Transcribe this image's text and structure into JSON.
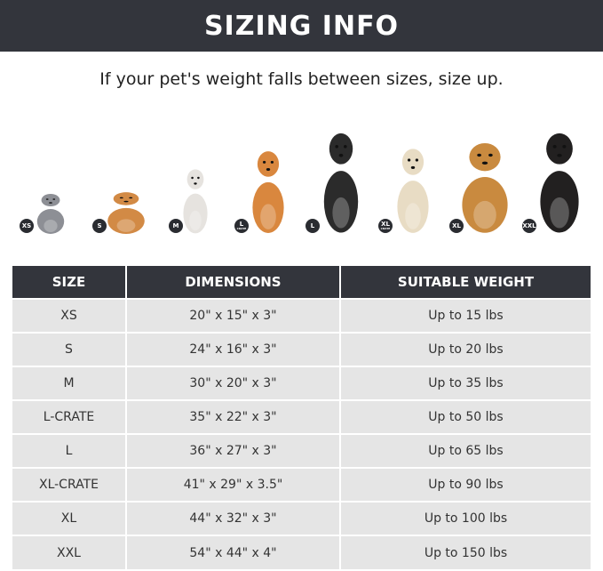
{
  "banner": {
    "title": "SIZING INFO"
  },
  "subtitle": "If your pet's weight falls between sizes, size up.",
  "pets": [
    {
      "badge": "XS",
      "animal": "cat",
      "color": "#8d8f95"
    },
    {
      "badge": "S",
      "animal": "pomeranian",
      "color": "#d28a45"
    },
    {
      "badge": "M",
      "animal": "french-bulldog",
      "color": "#e6e3df"
    },
    {
      "badge": "L",
      "badge_sub": "CRATE",
      "animal": "shiba-inu",
      "color": "#d9873e"
    },
    {
      "badge": "L",
      "animal": "border-collie",
      "color": "#2b2b2b"
    },
    {
      "badge": "XL",
      "badge_sub": "CRATE",
      "animal": "labrador",
      "color": "#e8dcc4"
    },
    {
      "badge": "XL",
      "animal": "golden-retriever",
      "color": "#c98a3f"
    },
    {
      "badge": "XXL",
      "animal": "doberman",
      "color": "#222020"
    }
  ],
  "table": {
    "headers": [
      "SIZE",
      "DIMENSIONS",
      "SUITABLE WEIGHT"
    ],
    "rows": [
      [
        "XS",
        "20\" x 15\" x 3\"",
        "Up to 15 lbs"
      ],
      [
        "S",
        "24\" x 16\" x 3\"",
        "Up to 20 lbs"
      ],
      [
        "M",
        "30\" x 20\" x 3\"",
        "Up to 35 lbs"
      ],
      [
        "L-CRATE",
        "35\" x 22\" x 3\"",
        "Up to 50 lbs"
      ],
      [
        "L",
        "36\" x 27\" x 3\"",
        "Up to 65 lbs"
      ],
      [
        "XL-CRATE",
        "41\" x 29\" x 3.5\"",
        "Up to 90 lbs"
      ],
      [
        "XL",
        "44\" x 32\" x 3\"",
        "Up to 100 lbs"
      ],
      [
        "XXL",
        "54\" x 44\" x 4\"",
        "Up to 150 lbs"
      ]
    ]
  }
}
